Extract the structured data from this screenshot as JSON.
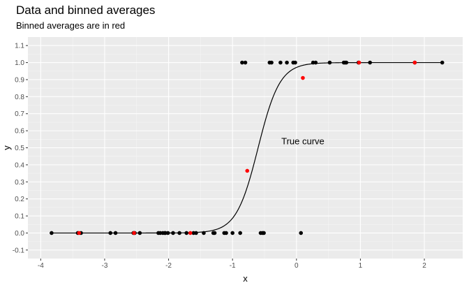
{
  "chart_data": {
    "type": "scatter",
    "title": "Data and binned averages",
    "subtitle": "Binned averages are in red",
    "xlabel": "x",
    "ylabel": "y",
    "xlim": [
      -4.2,
      2.6
    ],
    "ylim": [
      -0.15,
      1.15
    ],
    "x_ticks": [
      -4,
      -3,
      -2,
      -1,
      0,
      1,
      2
    ],
    "y_ticks": [
      -0.1,
      0.0,
      0.1,
      0.2,
      0.3,
      0.4,
      0.5,
      0.6,
      0.7,
      0.8,
      0.9,
      1.0,
      1.1
    ],
    "y_tick_labels": [
      "-0.1",
      "0.0",
      "0.1",
      "0.2",
      "0.3",
      "0.4",
      "0.5",
      "0.6",
      "0.7",
      "0.8",
      "0.9",
      "1.0",
      "1.1"
    ],
    "grid": true,
    "annotation": {
      "text": "True curve",
      "x": 0.1,
      "y": 0.52
    },
    "curve": {
      "type": "logistic",
      "midpoint": -0.6,
      "scale": 0.17
    },
    "series": [
      {
        "color": "#000000",
        "points": [
          [
            -3.83,
            0
          ],
          [
            -3.42,
            0
          ],
          [
            -3.37,
            0
          ],
          [
            -2.91,
            0
          ],
          [
            -2.83,
            0
          ],
          [
            -2.55,
            0
          ],
          [
            -2.53,
            0
          ],
          [
            -2.45,
            0
          ],
          [
            -2.16,
            0
          ],
          [
            -2.13,
            0
          ],
          [
            -2.09,
            0
          ],
          [
            -2.06,
            0
          ],
          [
            -2.05,
            0
          ],
          [
            -2.01,
            0
          ],
          [
            -1.93,
            0
          ],
          [
            -1.83,
            0
          ],
          [
            -1.72,
            0
          ],
          [
            -1.61,
            0
          ],
          [
            -1.57,
            0
          ],
          [
            -1.45,
            0
          ],
          [
            -1.3,
            0
          ],
          [
            -1.28,
            0
          ],
          [
            -1.13,
            0
          ],
          [
            -1.1,
            0
          ],
          [
            -1.0,
            0
          ],
          [
            -0.88,
            0
          ],
          [
            -0.56,
            0
          ],
          [
            -0.53,
            0
          ],
          [
            -0.51,
            0
          ],
          [
            0.07,
            0
          ],
          [
            -0.85,
            1
          ],
          [
            -0.8,
            1
          ],
          [
            -0.42,
            1
          ],
          [
            -0.39,
            1
          ],
          [
            -0.25,
            1
          ],
          [
            -0.15,
            1
          ],
          [
            -0.05,
            1
          ],
          [
            -0.02,
            1
          ],
          [
            0.26,
            1
          ],
          [
            0.3,
            1
          ],
          [
            0.52,
            1
          ],
          [
            0.74,
            1
          ],
          [
            0.76,
            1
          ],
          [
            0.78,
            1
          ],
          [
            0.97,
            1
          ],
          [
            1.15,
            1
          ],
          [
            1.85,
            1
          ],
          [
            2.28,
            1
          ]
        ]
      },
      {
        "color": "#ff0000",
        "points": [
          [
            -3.4,
            0.0
          ],
          [
            -2.54,
            0.0
          ],
          [
            -1.66,
            0.0
          ],
          [
            -0.77,
            0.365
          ],
          [
            0.1,
            0.91
          ],
          [
            0.98,
            1.0
          ],
          [
            1.85,
            1.0
          ]
        ]
      }
    ]
  }
}
